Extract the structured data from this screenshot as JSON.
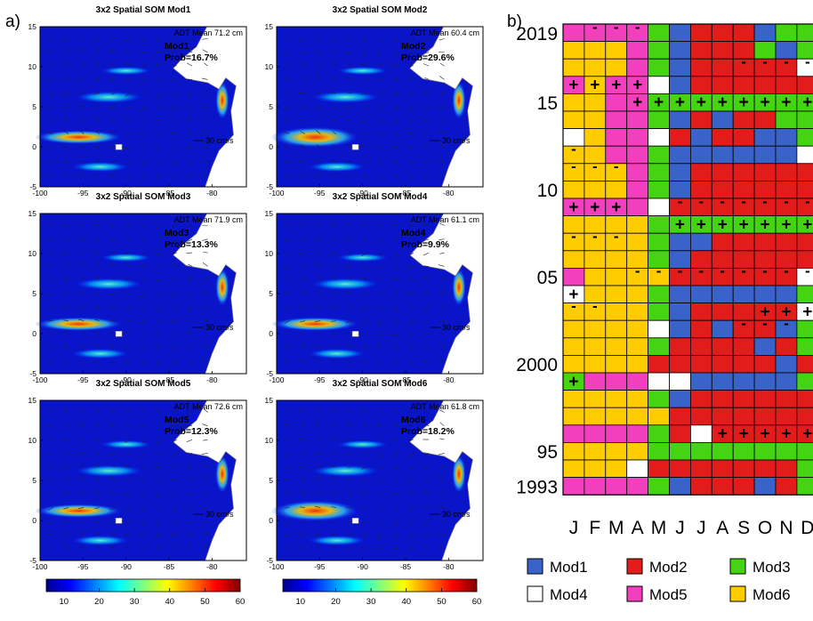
{
  "panel_labels": {
    "a": "a)",
    "b": "b)"
  },
  "colors": {
    "Mod1": "#3a63c9",
    "Mod2": "#e21b1b",
    "Mod3": "#44d411",
    "Mod4": "#ffffff",
    "Mod5": "#f23fbd",
    "Mod6": "#ffcc00"
  },
  "chart_data": [
    {
      "type": "heatmap",
      "panel": "a",
      "title": "3x2 Spatial SOM Mod1",
      "annotation_mean": "ADT Mean 71.2 cm",
      "mode_label": "Mod1",
      "prob_label": "Prob=16.7%",
      "vector_scale": "30 cm/s",
      "xlim": [
        -100,
        -76
      ],
      "ylim": [
        -5,
        15
      ],
      "xticks": [
        "-100",
        "-95",
        "-90",
        "-85",
        "-80"
      ],
      "yticks": [
        "-5",
        "0",
        "5",
        "10",
        "15"
      ]
    },
    {
      "type": "heatmap",
      "panel": "a",
      "title": "3x2 Spatial SOM Mod2",
      "annotation_mean": "ADT Mean 60.4 cm",
      "mode_label": "Mod2",
      "prob_label": "Prob=29.6%",
      "vector_scale": "30 cm/s",
      "xlim": [
        -100,
        -76
      ],
      "ylim": [
        -5,
        15
      ],
      "xticks": [
        "-100",
        "-95",
        "-90",
        "-85",
        "-80"
      ],
      "yticks": [
        "-5",
        "0",
        "5",
        "10",
        "15"
      ]
    },
    {
      "type": "heatmap",
      "panel": "a",
      "title": "3x2 Spatial SOM Mod3",
      "annotation_mean": "ADT Mean 71.9 cm",
      "mode_label": "Mod3",
      "prob_label": "Prob=13.3%",
      "vector_scale": "30 cm/s",
      "xlim": [
        -100,
        -76
      ],
      "ylim": [
        -5,
        15
      ],
      "xticks": [
        "-100",
        "-95",
        "-90",
        "-85",
        "-80"
      ],
      "yticks": [
        "-5",
        "0",
        "5",
        "10",
        "15"
      ]
    },
    {
      "type": "heatmap",
      "panel": "a",
      "title": "3x2 Spatial SOM Mod4",
      "annotation_mean": "ADT Mean 61.1 cm",
      "mode_label": "Mod4",
      "prob_label": "Prob=9.9%",
      "vector_scale": "30 cm/s",
      "xlim": [
        -100,
        -76
      ],
      "ylim": [
        -5,
        15
      ],
      "xticks": [
        "-100",
        "-95",
        "-90",
        "-85",
        "-80"
      ],
      "yticks": [
        "-5",
        "0",
        "5",
        "10",
        "15"
      ]
    },
    {
      "type": "heatmap",
      "panel": "a",
      "title": "3x2 Spatial SOM Mod5",
      "annotation_mean": "ADT Mean 72.6 cm",
      "mode_label": "Mod5",
      "prob_label": "Prob=12.3%",
      "vector_scale": "30 cm/s",
      "xlim": [
        -100,
        -76
      ],
      "ylim": [
        -5,
        15
      ],
      "xticks": [
        "-100",
        "-95",
        "-90",
        "-85",
        "-80"
      ],
      "yticks": [
        "-5",
        "0",
        "5",
        "10",
        "15"
      ],
      "colorbar_ticks": [
        "10",
        "20",
        "30",
        "40",
        "50",
        "60"
      ]
    },
    {
      "type": "heatmap",
      "panel": "a",
      "title": "3x2 Spatial SOM Mod6",
      "annotation_mean": "ADT Mean 61.8 cm",
      "mode_label": "Mod6",
      "prob_label": "Prob=18.2%",
      "vector_scale": "30 cm/s",
      "xlim": [
        -100,
        -76
      ],
      "ylim": [
        -5,
        15
      ],
      "xticks": [
        "-100",
        "-95",
        "-90",
        "-85",
        "-80"
      ],
      "yticks": [
        "-5",
        "0",
        "5",
        "10",
        "15"
      ],
      "colorbar_ticks": [
        "10",
        "20",
        "30",
        "40",
        "50",
        "60"
      ]
    },
    {
      "type": "table",
      "panel": "b",
      "months": [
        "J",
        "F",
        "M",
        "A",
        "M",
        "J",
        "J",
        "A",
        "S",
        "O",
        "N",
        "D"
      ],
      "year_labels": [
        {
          "label": "2019",
          "year": 2019
        },
        {
          "label": "15",
          "year": 2015
        },
        {
          "label": "10",
          "year": 2010
        },
        {
          "label": "05",
          "year": 2005
        },
        {
          "label": "2000",
          "year": 2000
        },
        {
          "label": "95",
          "year": 1995
        },
        {
          "label": "1993",
          "year": 1993
        }
      ],
      "years": [
        2019,
        2018,
        2017,
        2016,
        2015,
        2014,
        2013,
        2012,
        2011,
        2010,
        2009,
        2008,
        2007,
        2006,
        2005,
        2004,
        2003,
        2002,
        2001,
        2000,
        1999,
        1998,
        1997,
        1996,
        1995,
        1994,
        1993
      ],
      "grid": [
        [
          "Mod5",
          "Mod5",
          "Mod5",
          "Mod5",
          "Mod3",
          "Mod1",
          "Mod2",
          "Mod2",
          "Mod2",
          "Mod1",
          "Mod3",
          "Mod3"
        ],
        [
          "Mod6",
          "Mod6",
          "Mod6",
          "Mod5",
          "Mod3",
          "Mod1",
          "Mod2",
          "Mod2",
          "Mod2",
          "Mod3",
          "Mod1",
          "Mod3"
        ],
        [
          "Mod6",
          "Mod6",
          "Mod6",
          "Mod5",
          "Mod3",
          "Mod1",
          "Mod2",
          "Mod2",
          "Mod2",
          "Mod2",
          "Mod2",
          "Mod4"
        ],
        [
          "Mod5",
          "Mod6",
          "Mod5",
          "Mod5",
          "Mod4",
          "Mod1",
          "Mod2",
          "Mod2",
          "Mod2",
          "Mod2",
          "Mod2",
          "Mod2"
        ],
        [
          "Mod6",
          "Mod6",
          "Mod5",
          "Mod5",
          "Mod3",
          "Mod3",
          "Mod3",
          "Mod3",
          "Mod3",
          "Mod3",
          "Mod3",
          "Mod3"
        ],
        [
          "Mod6",
          "Mod6",
          "Mod5",
          "Mod5",
          "Mod3",
          "Mod1",
          "Mod2",
          "Mod1",
          "Mod2",
          "Mod2",
          "Mod3",
          "Mod3"
        ],
        [
          "Mod4",
          "Mod6",
          "Mod5",
          "Mod5",
          "Mod4",
          "Mod2",
          "Mod1",
          "Mod2",
          "Mod2",
          "Mod1",
          "Mod1",
          "Mod3"
        ],
        [
          "Mod6",
          "Mod6",
          "Mod5",
          "Mod5",
          "Mod3",
          "Mod1",
          "Mod1",
          "Mod1",
          "Mod1",
          "Mod1",
          "Mod1",
          "Mod4"
        ],
        [
          "Mod6",
          "Mod6",
          "Mod6",
          "Mod5",
          "Mod3",
          "Mod1",
          "Mod2",
          "Mod2",
          "Mod2",
          "Mod2",
          "Mod2",
          "Mod2"
        ],
        [
          "Mod6",
          "Mod6",
          "Mod6",
          "Mod5",
          "Mod3",
          "Mod1",
          "Mod2",
          "Mod2",
          "Mod2",
          "Mod2",
          "Mod2",
          "Mod2"
        ],
        [
          "Mod5",
          "Mod5",
          "Mod5",
          "Mod5",
          "Mod4",
          "Mod2",
          "Mod2",
          "Mod2",
          "Mod2",
          "Mod2",
          "Mod2",
          "Mod2"
        ],
        [
          "Mod6",
          "Mod6",
          "Mod6",
          "Mod6",
          "Mod3",
          "Mod3",
          "Mod3",
          "Mod3",
          "Mod3",
          "Mod3",
          "Mod3",
          "Mod3"
        ],
        [
          "Mod6",
          "Mod6",
          "Mod6",
          "Mod6",
          "Mod3",
          "Mod1",
          "Mod1",
          "Mod2",
          "Mod2",
          "Mod2",
          "Mod2",
          "Mod2"
        ],
        [
          "Mod6",
          "Mod6",
          "Mod6",
          "Mod6",
          "Mod3",
          "Mod1",
          "Mod2",
          "Mod2",
          "Mod2",
          "Mod2",
          "Mod2",
          "Mod2"
        ],
        [
          "Mod5",
          "Mod6",
          "Mod6",
          "Mod6",
          "Mod6",
          "Mod2",
          "Mod2",
          "Mod2",
          "Mod2",
          "Mod2",
          "Mod2",
          "Mod4"
        ],
        [
          "Mod4",
          "Mod6",
          "Mod6",
          "Mod6",
          "Mod3",
          "Mod1",
          "Mod1",
          "Mod1",
          "Mod1",
          "Mod1",
          "Mod1",
          "Mod3"
        ],
        [
          "Mod6",
          "Mod6",
          "Mod6",
          "Mod6",
          "Mod3",
          "Mod1",
          "Mod2",
          "Mod2",
          "Mod2",
          "Mod2",
          "Mod2",
          "Mod4"
        ],
        [
          "Mod6",
          "Mod6",
          "Mod6",
          "Mod6",
          "Mod4",
          "Mod1",
          "Mod2",
          "Mod1",
          "Mod2",
          "Mod2",
          "Mod1",
          "Mod3"
        ],
        [
          "Mod6",
          "Mod6",
          "Mod6",
          "Mod6",
          "Mod3",
          "Mod2",
          "Mod2",
          "Mod2",
          "Mod2",
          "Mod1",
          "Mod2",
          "Mod3"
        ],
        [
          "Mod6",
          "Mod6",
          "Mod6",
          "Mod6",
          "Mod2",
          "Mod2",
          "Mod2",
          "Mod2",
          "Mod2",
          "Mod2",
          "Mod1",
          "Mod2"
        ],
        [
          "Mod3",
          "Mod5",
          "Mod5",
          "Mod5",
          "Mod4",
          "Mod4",
          "Mod1",
          "Mod1",
          "Mod1",
          "Mod1",
          "Mod1",
          "Mod3"
        ],
        [
          "Mod6",
          "Mod6",
          "Mod6",
          "Mod6",
          "Mod3",
          "Mod1",
          "Mod2",
          "Mod2",
          "Mod2",
          "Mod2",
          "Mod2",
          "Mod2"
        ],
        [
          "Mod6",
          "Mod6",
          "Mod6",
          "Mod6",
          "Mod6",
          "Mod2",
          "Mod2",
          "Mod2",
          "Mod2",
          "Mod2",
          "Mod2",
          "Mod2"
        ],
        [
          "Mod5",
          "Mod5",
          "Mod5",
          "Mod5",
          "Mod3",
          "Mod2",
          "Mod4",
          "Mod2",
          "Mod2",
          "Mod2",
          "Mod2",
          "Mod2"
        ],
        [
          "Mod6",
          "Mod6",
          "Mod6",
          "Mod6",
          "Mod3",
          "Mod3",
          "Mod3",
          "Mod3",
          "Mod3",
          "Mod3",
          "Mod3",
          "Mod3"
        ],
        [
          "Mod6",
          "Mod6",
          "Mod6",
          "Mod4",
          "Mod2",
          "Mod2",
          "Mod2",
          "Mod2",
          "Mod2",
          "Mod2",
          "Mod2",
          "Mod3"
        ],
        [
          "Mod5",
          "Mod5",
          "Mod5",
          "Mod5",
          "Mod3",
          "Mod1",
          "Mod2",
          "Mod2",
          "Mod2",
          "Mod1",
          "Mod2",
          "Mod3"
        ]
      ],
      "marks": [
        [
          "",
          "-",
          "-",
          "-",
          "",
          "",
          "",
          "",
          "",
          "",
          "",
          ""
        ],
        [
          "",
          "",
          "",
          "",
          "",
          "",
          "",
          "",
          "",
          "",
          "",
          ""
        ],
        [
          "",
          "",
          "",
          "",
          "",
          "",
          "",
          "",
          "-",
          "-",
          "-",
          "-"
        ],
        [
          "+",
          "+",
          "+",
          "+",
          "",
          "",
          "",
          "",
          "",
          "",
          "",
          ""
        ],
        [
          "",
          "",
          "",
          "+",
          "+",
          "+",
          "+",
          "+",
          "+",
          "+",
          "+",
          "+"
        ],
        [
          "",
          "",
          "",
          "",
          "",
          "",
          "",
          "",
          "",
          "",
          "",
          ""
        ],
        [
          "",
          "",
          "",
          "",
          "",
          "",
          "",
          "",
          "",
          "",
          "",
          ""
        ],
        [
          "-",
          "",
          "",
          "",
          "",
          "",
          "",
          "",
          "",
          "",
          "",
          ""
        ],
        [
          "-",
          "-",
          "-",
          "",
          "",
          "",
          "",
          "",
          "",
          "",
          "",
          ""
        ],
        [
          "",
          "",
          "",
          "",
          "",
          "",
          "",
          "",
          "",
          "",
          "",
          ""
        ],
        [
          "+",
          "+",
          "+",
          "",
          "",
          "-",
          "-",
          "-",
          "-",
          "-",
          "-",
          "-"
        ],
        [
          "",
          "",
          "",
          "",
          "",
          "+",
          "+",
          "+",
          "+",
          "+",
          "+",
          "+"
        ],
        [
          "-",
          "-",
          "-",
          "",
          "",
          "",
          "",
          "",
          "",
          "",
          "",
          ""
        ],
        [
          "",
          "",
          "",
          "",
          "",
          "",
          "",
          "",
          "",
          "",
          "",
          ""
        ],
        [
          "",
          "",
          "",
          "-",
          "-",
          "-",
          "-",
          "-",
          "-",
          "-",
          "-",
          "-"
        ],
        [
          "+",
          "",
          "",
          "",
          "",
          "",
          "",
          "",
          "",
          "",
          "",
          ""
        ],
        [
          "-",
          "-",
          "",
          "",
          "",
          "",
          "",
          "",
          "",
          "+",
          "+",
          "+"
        ],
        [
          "",
          "",
          "",
          "",
          "",
          "",
          "",
          "",
          "-",
          "-",
          "-",
          ""
        ],
        [
          "",
          "",
          "",
          "",
          "",
          "",
          "",
          "",
          "",
          "",
          "",
          ""
        ],
        [
          "",
          "",
          "",
          "",
          "",
          "",
          "",
          "",
          "",
          "",
          "",
          ""
        ],
        [
          "+",
          "",
          "",
          "",
          "",
          "",
          "",
          "",
          "",
          "",
          "",
          ""
        ],
        [
          "",
          "",
          "",
          "",
          "",
          "",
          "",
          "",
          "",
          "",
          "",
          ""
        ],
        [
          "",
          "",
          "",
          "",
          "",
          "",
          "",
          "",
          "",
          "",
          "",
          ""
        ],
        [
          "",
          "",
          "",
          "",
          "",
          "",
          "",
          "+",
          "+",
          "+",
          "+",
          "+"
        ],
        [
          "",
          "",
          "",
          "",
          "",
          "",
          "",
          "",
          "",
          "",
          "",
          ""
        ],
        [
          "",
          "",
          "",
          "",
          "",
          "",
          "",
          "",
          "",
          "",
          "",
          ""
        ],
        [
          "",
          "",
          "",
          "",
          "",
          "",
          "",
          "",
          "",
          "",
          "",
          ""
        ]
      ],
      "legend": [
        "Mod1",
        "Mod2",
        "Mod3",
        "Mod4",
        "Mod5",
        "Mod6"
      ]
    }
  ]
}
